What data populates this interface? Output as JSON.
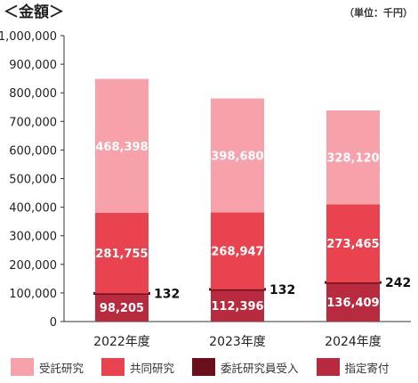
{
  "chart_data": {
    "type": "bar",
    "stacked": true,
    "title": "＜金額＞",
    "unit_label": "（単位：千円）",
    "categories": [
      "2022年度",
      "2023年度",
      "2024年度"
    ],
    "ylim": [
      0,
      1000000
    ],
    "yticks": [
      {
        "value": 0,
        "label": "0"
      },
      {
        "value": 100000,
        "label": "100,000"
      },
      {
        "value": 200000,
        "label": "200,000"
      },
      {
        "value": 300000,
        "label": "300,000"
      },
      {
        "value": 400000,
        "label": "400,000"
      },
      {
        "value": 500000,
        "label": "500,000"
      },
      {
        "value": 600000,
        "label": "600,000"
      },
      {
        "value": 700000,
        "label": "700,000"
      },
      {
        "value": 800000,
        "label": "800,000"
      },
      {
        "value": 900000,
        "label": "900,000"
      },
      {
        "value": 1000000,
        "label": "1,000,000"
      }
    ],
    "series": [
      {
        "name": "指定寄付",
        "color": "#b82a3e",
        "values": [
          98205,
          112396,
          136409
        ],
        "labels": [
          "98,205",
          "112,396",
          "136,409"
        ]
      },
      {
        "name": "委託研究員受入",
        "color": "#6a0f1c",
        "values": [
          132,
          132,
          242
        ],
        "labels": [
          "132",
          "132",
          "242"
        ]
      },
      {
        "name": "共同研究",
        "color": "#e8434e",
        "values": [
          281755,
          268947,
          273465
        ],
        "labels": [
          "281,755",
          "268,947",
          "273,465"
        ]
      },
      {
        "name": "受託研究",
        "color": "#f7a1ab",
        "values": [
          468398,
          398680,
          328120
        ],
        "labels": [
          "468,398",
          "398,680",
          "328,120"
        ]
      }
    ],
    "legend": {
      "position": "bottom",
      "order": [
        "受託研究",
        "共同研究",
        "委託研究員受入",
        "指定寄付"
      ]
    },
    "grid": false
  }
}
